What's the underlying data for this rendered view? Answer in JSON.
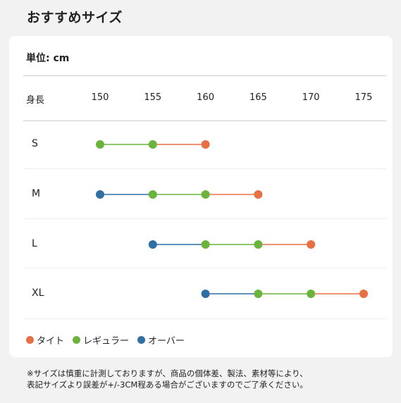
{
  "page_title": "おすすめサイズ",
  "unit_label": "単位: cm",
  "height_label": "身長",
  "colors": {
    "tight": "#e76f43",
    "regular": "#6ab43e",
    "over": "#2f6fa3"
  },
  "legend": {
    "tight": "タイト",
    "regular": "レギュラー",
    "over": "オーバー"
  },
  "chart_data": {
    "type": "range",
    "x_ticks": [
      "150",
      "155",
      "160",
      "165",
      "170",
      "175"
    ],
    "xlim": [
      150,
      175
    ],
    "rows": [
      {
        "size": "S",
        "points": [
          150,
          155,
          160
        ],
        "fit": [
          "regular",
          "regular",
          "tight"
        ]
      },
      {
        "size": "M",
        "points": [
          150,
          155,
          160,
          165
        ],
        "fit": [
          "over",
          "regular",
          "regular",
          "tight"
        ]
      },
      {
        "size": "L",
        "points": [
          155,
          160,
          165,
          170
        ],
        "fit": [
          "over",
          "regular",
          "regular",
          "tight"
        ]
      },
      {
        "size": "XL",
        "points": [
          160,
          165,
          170,
          175
        ],
        "fit": [
          "over",
          "regular",
          "regular",
          "tight"
        ]
      }
    ]
  },
  "note_line1": "※サイズは慎重に計測しておりますが、商品の個体差、製法、素材等により、",
  "note_line2": "表記サイズより誤差が+/-3CM程ある場合がございますのでご了承ください。"
}
